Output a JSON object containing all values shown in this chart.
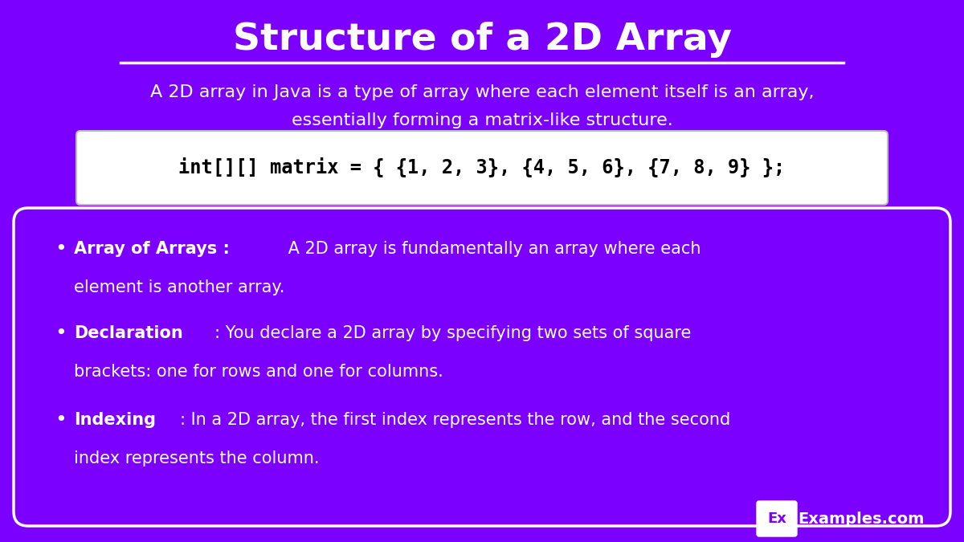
{
  "title": "Structure of a 2D Array",
  "bg_color": "#7B00FF",
  "subtitle_line1": "A 2D array in Java is a type of array where each element itself is an array,",
  "subtitle_line2": "essentially forming a matrix-like structure.",
  "code_text": "int[][] matrix = { {1, 2, 3}, {4, 5, 6}, {7, 8, 9} };",
  "bullet_points": [
    {
      "bold": "Array of Arrays : ",
      "normal": " A 2D array is fundamentally an array where each\nelement is another array."
    },
    {
      "bold": "Declaration",
      "normal": ": You declare a 2D array by specifying two sets of square\nbrackets: one for rows and one for columns."
    },
    {
      "bold": "Indexing",
      "normal": ": In a 2D array, the first index represents the row, and the second\nindex represents the column."
    }
  ],
  "white": "#FFFFFF",
  "black": "#000000",
  "box_fill": "#FFFFFF",
  "logo_text": "Examples.com",
  "logo_box": "Ex"
}
